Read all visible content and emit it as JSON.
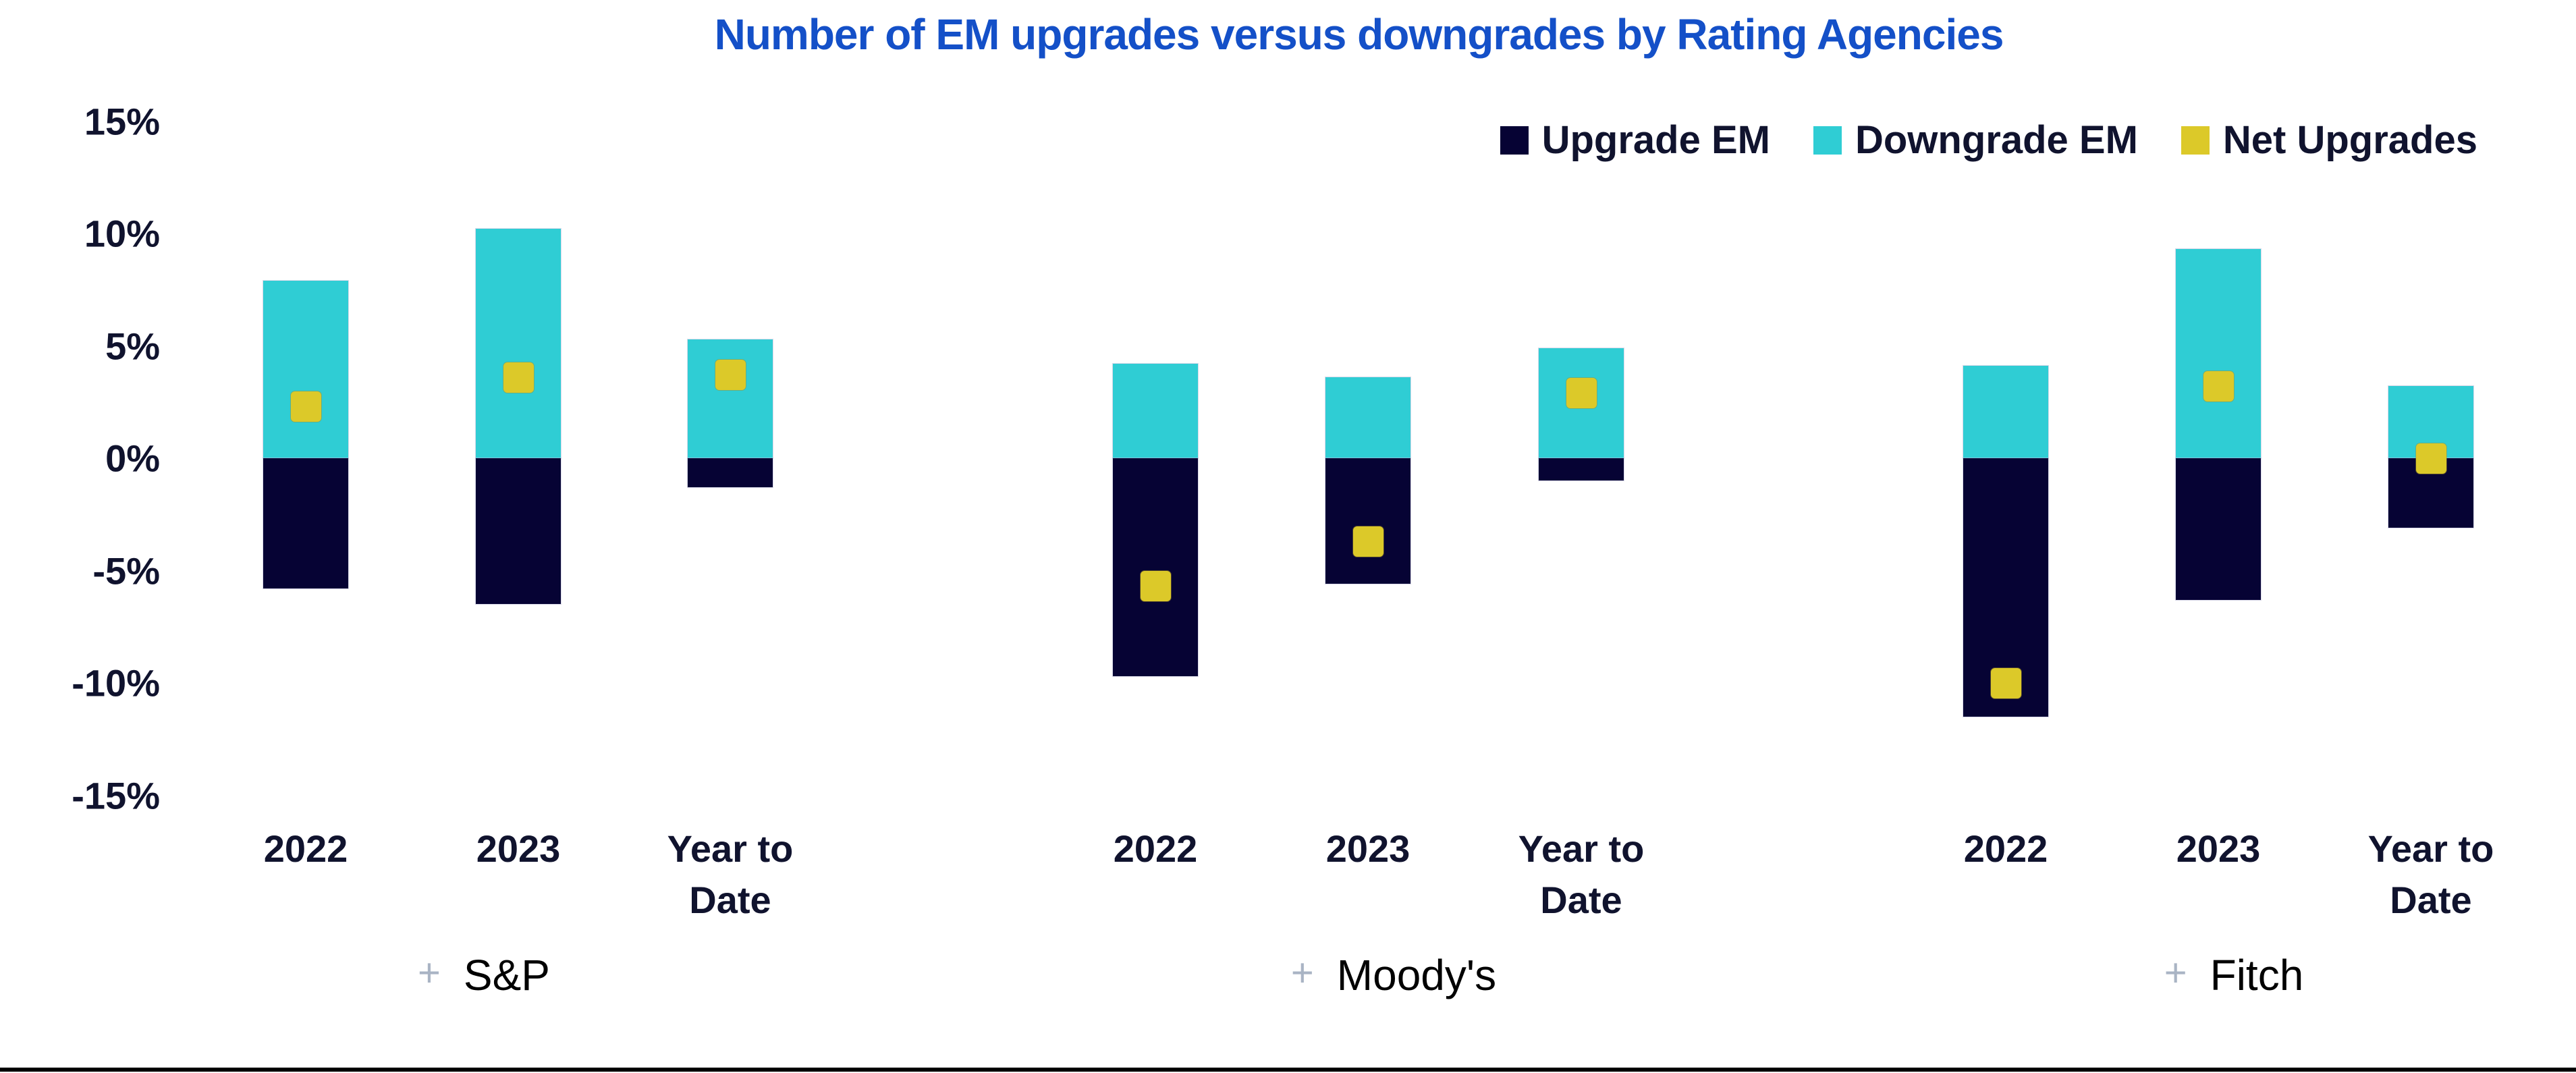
{
  "title": {
    "text": "Number of EM upgrades versus downgrades by Rating Agencies"
  },
  "colors": {
    "upgrade": "#060334",
    "downgrade": "#2FCDD4",
    "net": "#DCC929",
    "title": "#1450C8",
    "axis_text": "#10132E",
    "plus": "#A9B4C4",
    "group_text": "#000000",
    "border": "#000000"
  },
  "legend": {
    "items": [
      {
        "label": "Upgrade EM",
        "series": "upgrade"
      },
      {
        "label": "Downgrade EM",
        "series": "downgrade"
      },
      {
        "label": "Net Upgrades",
        "series": "net"
      }
    ]
  },
  "y_axis": {
    "tick_labels": [
      "15%",
      "10%",
      "5%",
      "0%",
      "-5%",
      "-10%",
      "-15%"
    ],
    "tick_values": [
      15,
      10,
      5,
      0,
      -5,
      -10,
      -15
    ],
    "unit": "%",
    "min": -15,
    "max": 15
  },
  "groups": [
    {
      "name": "S&P",
      "plus_glyph": "+",
      "bars": [
        {
          "category_lines": [
            "2022"
          ],
          "upgrade": -5.8,
          "downgrade": 7.9,
          "net": 2.3
        },
        {
          "category_lines": [
            "2023"
          ],
          "upgrade": -6.5,
          "downgrade": 10.2,
          "net": 3.6
        },
        {
          "category_lines": [
            "Year to",
            "Date"
          ],
          "upgrade": -1.3,
          "downgrade": 5.3,
          "net": 3.7
        }
      ]
    },
    {
      "name": "Moody's",
      "plus_glyph": "+",
      "bars": [
        {
          "category_lines": [
            "2022"
          ],
          "upgrade": -9.7,
          "downgrade": 4.2,
          "net": -5.7
        },
        {
          "category_lines": [
            "2023"
          ],
          "upgrade": -5.6,
          "downgrade": 3.6,
          "net": -3.7
        },
        {
          "category_lines": [
            "Year to",
            "Date"
          ],
          "upgrade": -1.0,
          "downgrade": 4.9,
          "net": 2.9
        }
      ]
    },
    {
      "name": "Fitch",
      "plus_glyph": "+",
      "bars": [
        {
          "category_lines": [
            "2022"
          ],
          "upgrade": -11.5,
          "downgrade": 4.1,
          "net": -10.0
        },
        {
          "category_lines": [
            "2023"
          ],
          "upgrade": -6.3,
          "downgrade": 9.3,
          "net": 3.2
        },
        {
          "category_lines": [
            "Year to",
            "Date"
          ],
          "upgrade": -3.1,
          "downgrade": 3.2,
          "net": 0.0
        }
      ]
    }
  ],
  "chart_data": {
    "type": "bar",
    "variant": "stacked diverging columns with square point overlay",
    "title": "Number of EM upgrades versus downgrades by Rating Agencies",
    "unit": "%",
    "groups": [
      "S&P",
      "Moody's",
      "Fitch"
    ],
    "categories": [
      "2022",
      "2023",
      "Year to Date"
    ],
    "series": [
      {
        "name": "Upgrade EM",
        "type": "bar",
        "color": "#060334",
        "values": {
          "S&P": [
            -5.8,
            -6.5,
            -1.3
          ],
          "Moody's": [
            -9.7,
            -5.6,
            -1.0
          ],
          "Fitch": [
            -11.5,
            -6.3,
            -3.1
          ]
        }
      },
      {
        "name": "Downgrade EM",
        "type": "bar",
        "color": "#2FCDD4",
        "values": {
          "S&P": [
            7.9,
            10.2,
            5.3
          ],
          "Moody's": [
            4.2,
            3.6,
            4.9
          ],
          "Fitch": [
            4.1,
            9.3,
            3.2
          ]
        }
      },
      {
        "name": "Net Upgrades",
        "type": "scatter-square",
        "color": "#DCC929",
        "values": {
          "S&P": [
            2.3,
            3.6,
            3.7
          ],
          "Moody's": [
            -5.7,
            -3.7,
            2.9
          ],
          "Fitch": [
            -10.0,
            3.2,
            0.0
          ]
        }
      }
    ],
    "ylim": [
      -15,
      15
    ],
    "y_ticks": [
      15,
      10,
      5,
      0,
      -5,
      -10,
      -15
    ],
    "grid": false,
    "legend_position": "top-right"
  }
}
